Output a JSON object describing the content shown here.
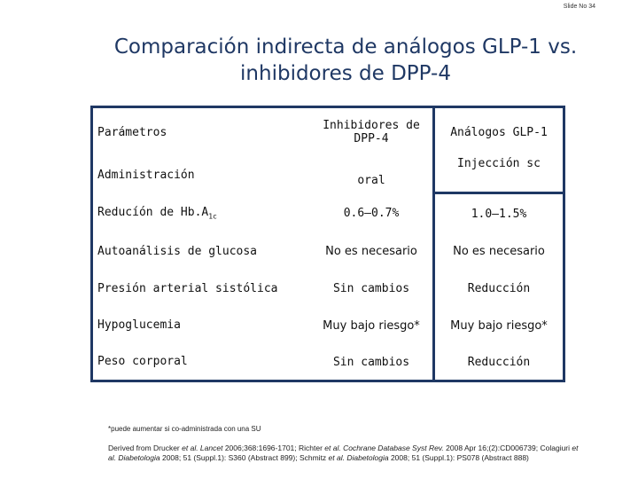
{
  "slide_number": "Slide No 34",
  "title": {
    "line1": "Comparación indirecta de análogos GLP-1  vs.",
    "line2": "inhibidores de DPP-4"
  },
  "table": {
    "header": {
      "col1": "Parámetros",
      "col2_line1": "Inhibidores de",
      "col2_line2": "DPP-4",
      "col3": "Análogos GLP-1"
    },
    "rows": [
      {
        "param": "Administración",
        "dpp4": "oral",
        "glp1": "Injección sc"
      },
      {
        "param": "Reducíón de Hb.A",
        "param_sub": "1c",
        "dpp4": "0.6–0.7%",
        "glp1": "1.0–1.5%"
      },
      {
        "param": "Autoanálisis de glucosa",
        "dpp4": "No es necesario",
        "glp1": "No es necesario"
      },
      {
        "param": "Presión arterial sistólica",
        "dpp4": "Sin cambios",
        "glp1": "Reducción"
      },
      {
        "param": "Hypoglucemia",
        "dpp4": "Muy bajo riesgo*",
        "glp1": "Muy bajo riesgo*"
      },
      {
        "param": "Peso corporal",
        "dpp4": "Sin cambios",
        "glp1": "Reducción"
      }
    ]
  },
  "footnote": "*puede aumentar si co-administrada con una SU",
  "references": {
    "p1": "Derived from Drucker ",
    "p2": "et al. Lancet",
    "p3": " 2006;368:1696-1701; Richter ",
    "p4": "et al. Cochrane Database Syst Rev.",
    "p5": " 2008 Apr 16;(2):CD006739; Colagiuri ",
    "p6": "et al. Diabetologia",
    "p7": " 2008; 51 (Suppl.1): S360 (Abstract 899); Schmitz ",
    "p8": "et al. Diabetologia",
    "p9": " 2008; 51 (Suppl.1): PS078 (Abstract 888)"
  }
}
